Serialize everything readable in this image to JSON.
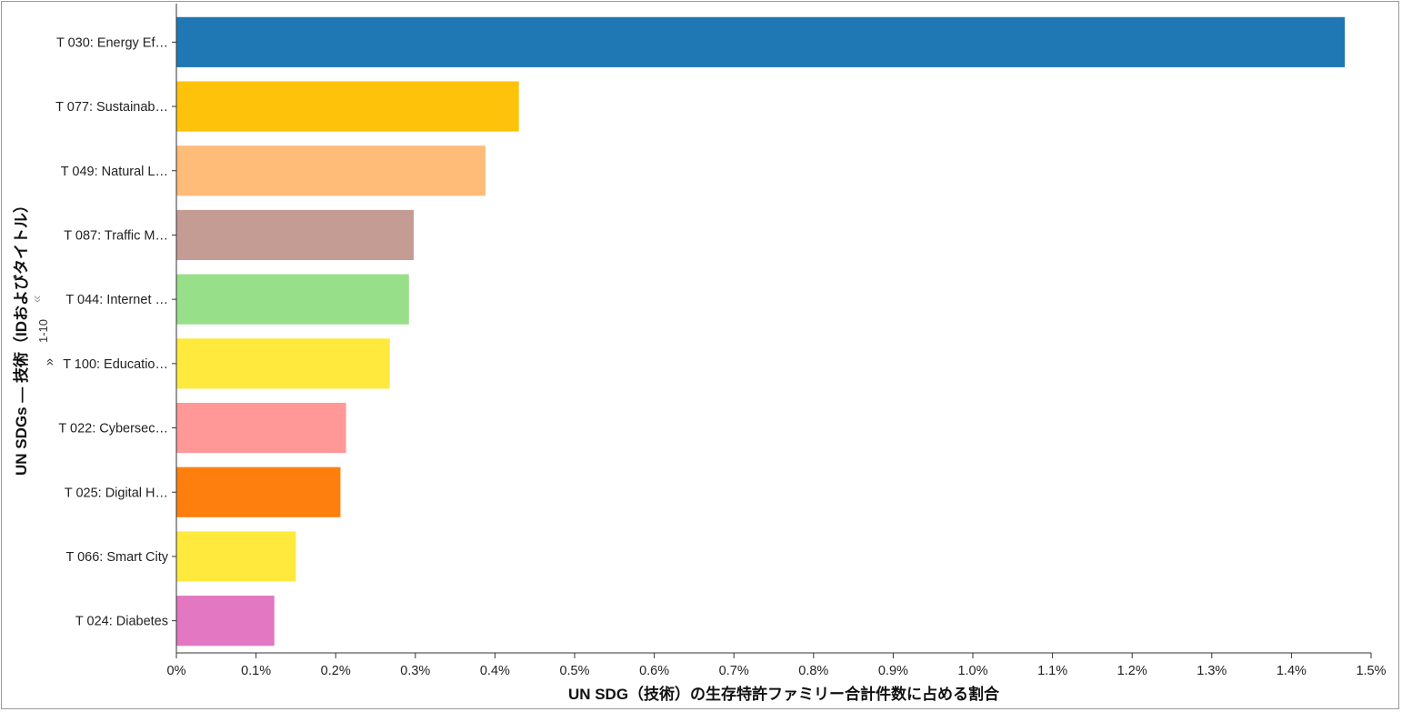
{
  "chart_data": {
    "type": "bar",
    "orientation": "horizontal",
    "categories": [
      "T 030: Energy Ef…",
      "T 077: Sustainab…",
      "T 049: Natural L…",
      "T 087: Traffic M…",
      "T 044: Internet …",
      "T 100: Educatio…",
      "T 022: Cybersec…",
      "T 025: Digital H…",
      "T 066: Smart City",
      "T 024: Diabetes"
    ],
    "values": [
      1.467,
      0.43,
      0.388,
      0.298,
      0.292,
      0.268,
      0.213,
      0.206,
      0.15,
      0.123
    ],
    "colors": [
      "#1f77b4",
      "#ffc20a",
      "#ffbb78",
      "#c49c94",
      "#98df8a",
      "#ffe93c",
      "#ff9896",
      "#ff7f0e",
      "#ffe93c",
      "#e377c2"
    ],
    "x_ticks": [
      "0%",
      "0.1%",
      "0.2%",
      "0.3%",
      "0.4%",
      "0.5%",
      "0.6%",
      "0.7%",
      "0.8%",
      "0.9%",
      "1.0%",
      "1.1%",
      "1.2%",
      "1.3%",
      "1.4%",
      "1.5%"
    ],
    "xlim": [
      0,
      1.5
    ],
    "xlabel": "UN SDG（技術）の生存特許ファミリー合計件数に占める割合",
    "ylabel": "UN SDGs — 技術（IDおよびタイトル）",
    "grid": false
  },
  "pager": {
    "range_label": "1-10",
    "prev_arrow": "«",
    "next_arrow": "«"
  }
}
